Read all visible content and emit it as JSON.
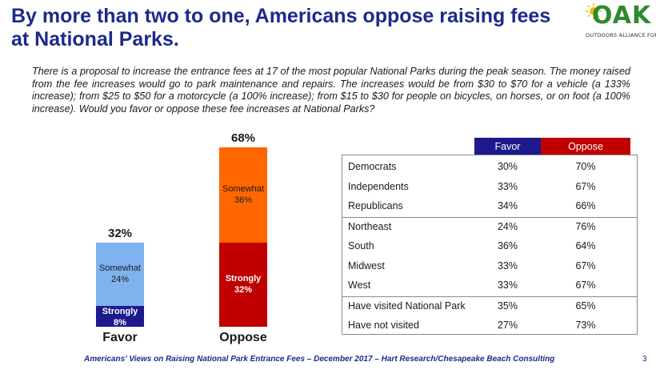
{
  "title": "By more than two to one, Americans oppose raising fees at National Parks.",
  "logo": {
    "text": "OAK",
    "tagline": "OUTDOORS ALLIANCE FOR KIDS",
    "color": "#2d8a2d"
  },
  "question": "There is a proposal to increase the entrance fees at 17 of the most popular National Parks during the peak season. The money raised from the fee increases would go to park maintenance and repairs. The increases would be from $30 to $70 for a vehicle (a 133% increase); from $25 to $50 for a motorcycle (a 100% increase); from $15 to $30 for people on bicycles, on horses, or on foot (a 100% increase).  Would you favor or oppose these fee increases at National Parks?",
  "chart_data": [
    {
      "type": "bar",
      "stacked": true,
      "categories": [
        "Favor",
        "Oppose"
      ],
      "totals": [
        "32%",
        "68%"
      ],
      "total_values": [
        32,
        68
      ],
      "series": [
        {
          "name": "Strongly",
          "values": [
            8,
            32
          ],
          "labels": [
            "8%",
            "32%"
          ],
          "colors": [
            "#1c1a8c",
            "#c00000"
          ],
          "text_color": "#ffffff"
        },
        {
          "name": "Somewhat",
          "values": [
            24,
            36
          ],
          "labels": [
            "24%",
            "36%"
          ],
          "colors": [
            "#7fb2ee",
            "#ff6600"
          ],
          "text_color": "#1a1a1a"
        }
      ],
      "ylim": [
        0,
        68
      ]
    },
    {
      "type": "table",
      "columns": [
        "",
        "Favor",
        "Oppose"
      ],
      "header_colors": {
        "favor": "#1c1a8c",
        "oppose": "#c00000"
      },
      "groups": [
        [
          {
            "label": "Democrats",
            "favor": "30%",
            "oppose": "70%"
          },
          {
            "label": "Independents",
            "favor": "33%",
            "oppose": "67%"
          },
          {
            "label": "Republicans",
            "favor": "34%",
            "oppose": "66%"
          }
        ],
        [
          {
            "label": "Northeast",
            "favor": "24%",
            "oppose": "76%"
          },
          {
            "label": "South",
            "favor": "36%",
            "oppose": "64%"
          },
          {
            "label": "Midwest",
            "favor": "33%",
            "oppose": "67%"
          },
          {
            "label": "West",
            "favor": "33%",
            "oppose": "67%"
          }
        ],
        [
          {
            "label": "Have visited National Park",
            "favor": "35%",
            "oppose": "65%"
          },
          {
            "label": "Have not visited",
            "favor": "27%",
            "oppose": "73%"
          }
        ]
      ]
    }
  ],
  "footer": "Americans’ Views on Raising National Park Entrance Fees – December 2017 – Hart Research/Chesapeake Beach Consulting",
  "page_number": "3"
}
